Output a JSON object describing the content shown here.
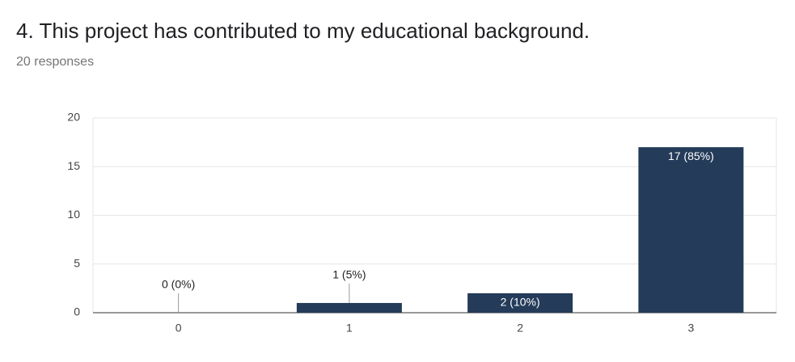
{
  "chart_data": {
    "type": "bar",
    "title": "4. This project has contributed to my educational background.",
    "subtitle": "20 responses",
    "categories": [
      "0",
      "1",
      "2",
      "3"
    ],
    "values": [
      0,
      1,
      2,
      17
    ],
    "value_labels": [
      "0 (0%)",
      "1 (5%)",
      "2 (10%)",
      "17 (85%)"
    ],
    "color": "#243b5a",
    "ylim": [
      0,
      20
    ],
    "yticks": [
      0,
      5,
      10,
      15,
      20
    ],
    "grid": true
  }
}
